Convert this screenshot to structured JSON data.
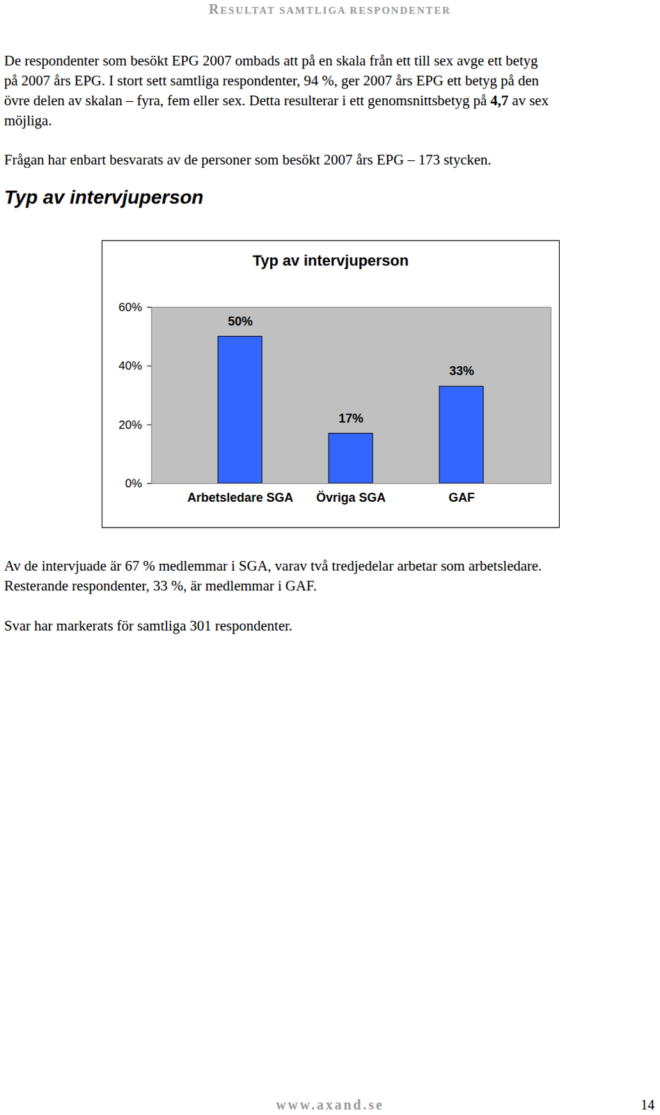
{
  "header": "RESULTAT SAMTLIGA RESPONDENTER",
  "paragraphs": [
    {
      "lines": [
        "De respondenter som besökt EPG 2007 ombads att på en skala från ett till sex avge ett betyg",
        "på 2007 års EPG. I stort sett samtliga respondenter, 94 %, ger 2007 års EPG ett betyg på den",
        [
          "övre delen av skalan – fyra, fem eller sex. Detta resulterar i ett genomsnittsbetyg på ",
          {
            "text": "4,7",
            "bold": true
          },
          " av sex"
        ],
        "möjliga."
      ]
    },
    {
      "lines": [
        "Frågan har enbart besvarats av de personer som besökt 2007 års EPG – 173 stycken."
      ]
    }
  ],
  "heading": "Typ av intervjuperson",
  "chart_data": {
    "type": "bar",
    "title": "Typ av intervjuperson",
    "categories": [
      "Arbetsledare SGA",
      "Övriga SGA",
      "GAF"
    ],
    "values": [
      50,
      17,
      33
    ],
    "value_labels": [
      "50%",
      "17%",
      "33%"
    ],
    "data_labels": true,
    "color": "#3366ff",
    "ylim": [
      0,
      60
    ],
    "yticks": [
      {
        "value": 0,
        "label": "0%"
      },
      {
        "value": 20,
        "label": "20%"
      },
      {
        "value": 40,
        "label": "40%"
      },
      {
        "value": 60,
        "label": "60%"
      }
    ],
    "grid": false
  },
  "after_paragraphs": [
    {
      "lines": [
        "Av de intervjuade är 67 % medlemmar i SGA, varav två tredjedelar arbetar som arbetsledare.",
        "Resterande respondenter, 33 %, är medlemmar i GAF."
      ]
    },
    {
      "lines": [
        "Svar har markerats för samtliga 301 respondenter."
      ]
    }
  ],
  "footer": "www.axand.se",
  "page_number": "14"
}
